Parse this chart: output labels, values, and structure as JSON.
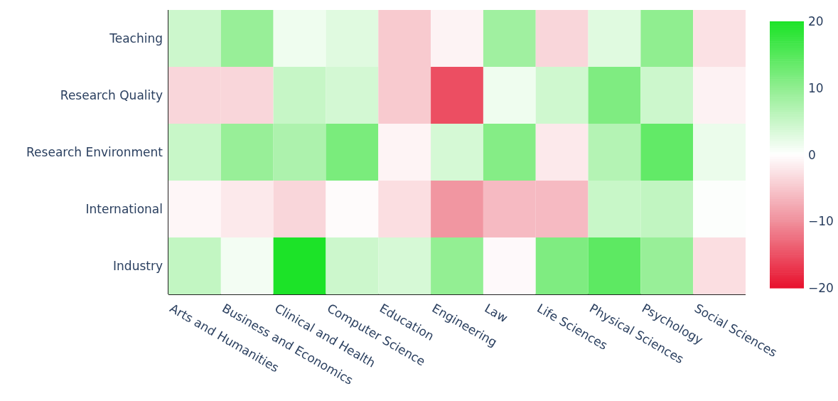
{
  "chart_data": {
    "type": "heatmap",
    "categories": [
      "Arts and Humanities",
      "Business and Economics",
      "Clinical and Health",
      "Computer Science",
      "Education",
      "Engineering",
      "Law",
      "Life Sciences",
      "Physical Sciences",
      "Psychology",
      "Social Sciences"
    ],
    "y_categories": [
      "Teaching",
      "Research Quality",
      "Research Environment",
      "International",
      "Industry"
    ],
    "cells": [
      [
        4.6,
        9.3,
        1.4,
        2.8,
        -4.8,
        -1.1,
        8.6,
        -3.7,
        2.8,
        10,
        -2.7
      ],
      [
        -3.7,
        -3.7,
        5.1,
        4,
        -4.8,
        -15.2,
        1.4,
        4.3,
        11.4,
        4.6,
        -1.2
      ],
      [
        5,
        9.3,
        7.4,
        11.9,
        -1,
        3.8,
        10.9,
        -2,
        6.8,
        13.9,
        1.8
      ],
      [
        -0.8,
        -2,
        -3.7,
        -0.4,
        -3,
        -9.5,
        -6.2,
        -6.2,
        5,
        5.6,
        0.3
      ],
      [
        5.5,
        1.1,
        19.8,
        4.6,
        3.7,
        9.7,
        -0.5,
        11.4,
        14.3,
        9.3,
        -3
      ]
    ],
    "clim": [
      -20,
      20
    ],
    "cticks": [
      {
        "value": 20,
        "label": "20"
      },
      {
        "value": 10,
        "label": "10"
      },
      {
        "value": 0,
        "label": "0"
      },
      {
        "value": -10,
        "label": "−10"
      },
      {
        "value": -20,
        "label": "−20"
      }
    ]
  }
}
